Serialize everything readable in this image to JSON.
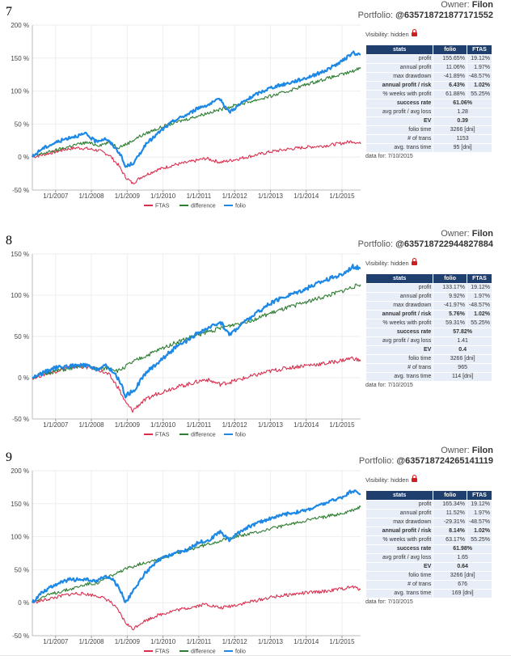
{
  "sections": [
    {
      "number": "7",
      "owner_label": "Owner:",
      "owner": "Filon",
      "portfolio_label": "Portfolio:",
      "portfolio": "@635718721877171552",
      "visibility": "Visibility: hidden",
      "stats_header": [
        "stats",
        "folio",
        "FTAS"
      ],
      "stats": [
        {
          "label": "profit",
          "folio": "155.65%",
          "ftas": "19.12%",
          "bold": false
        },
        {
          "label": "annual profit",
          "folio": "11.06%",
          "ftas": "1.97%",
          "bold": false
        },
        {
          "label": "max drawdown",
          "folio": "-41.89%",
          "ftas": "-48.57%",
          "bold": false
        },
        {
          "label": "annual profit / risk",
          "folio": "6.43%",
          "ftas": "1.02%",
          "bold": true
        },
        {
          "label": "% weeks with profit",
          "folio": "61.88%",
          "ftas": "55.25%",
          "bold": false
        },
        {
          "label": "success rate",
          "folio": "61.06%",
          "ftas": "",
          "bold": true
        },
        {
          "label": "avg profit / avg loss",
          "folio": "1.28",
          "ftas": "",
          "bold": false
        },
        {
          "label": "EV",
          "folio": "0.39",
          "ftas": "",
          "bold": true
        },
        {
          "label": "folio time",
          "folio": "3266 [dni]",
          "ftas": "",
          "bold": false
        },
        {
          "label": "# of trans",
          "folio": "1153",
          "ftas": "",
          "bold": false
        },
        {
          "label": "avg. trans time",
          "folio": "95 [dni]",
          "ftas": "",
          "bold": false
        }
      ],
      "data_for": "data for: 7/10/2015",
      "chart_data": {
        "type": "line",
        "title": "",
        "xlabel": "",
        "ylabel": "",
        "x_tick_labels": [
          "1/1/2007",
          "1/1/2008",
          "1/1/2009",
          "1/1/2010",
          "1/1/2011",
          "1/1/2012",
          "1/1/2013",
          "1/1/2014",
          "1/1/2015"
        ],
        "x_range": [
          2006.35,
          2015.52
        ],
        "y_tick_labels": [
          "200 %",
          "150 %",
          "100 %",
          "50 %",
          "0 %",
          "-50 %"
        ],
        "ylim": [
          -50,
          200
        ],
        "legend": [
          "FTAS",
          "difference",
          "folio"
        ],
        "series": [
          {
            "name": "FTAS",
            "color": "#d9304f",
            "x": [
              2006.35,
              2006.6,
              2007.0,
              2007.3,
              2007.6,
              2007.85,
              2008.2,
              2008.5,
              2008.75,
              2008.95,
              2009.15,
              2009.4,
              2009.8,
              2010.3,
              2010.7,
              2011.2,
              2011.6,
              2011.9,
              2012.5,
              2013.0,
              2013.5,
              2014.0,
              2014.5,
              2015.0,
              2015.3,
              2015.52
            ],
            "y": [
              0,
              3,
              8,
              12,
              14,
              13,
              10,
              3,
              -12,
              -30,
              -40,
              -30,
              -20,
              -12,
              -8,
              -2,
              -8,
              -5,
              2,
              8,
              12,
              15,
              17,
              21,
              24,
              20
            ]
          },
          {
            "name": "difference",
            "color": "#2e7d32",
            "x": [
              2006.35,
              2006.6,
              2007.0,
              2007.5,
              2007.85,
              2008.2,
              2008.5,
              2008.75,
              2009.0,
              2009.3,
              2009.7,
              2010.2,
              2010.7,
              2011.2,
              2011.6,
              2012.0,
              2012.5,
              2013.0,
              2013.5,
              2014.0,
              2014.5,
              2015.0,
              2015.3,
              2015.52
            ],
            "y": [
              0,
              5,
              10,
              18,
              22,
              18,
              22,
              15,
              20,
              30,
              40,
              50,
              58,
              66,
              72,
              78,
              85,
              92,
              100,
              110,
              118,
              125,
              130,
              136
            ]
          },
          {
            "name": "folio",
            "color": "#1e88e5",
            "x": [
              2006.35,
              2006.6,
              2007.0,
              2007.4,
              2007.85,
              2008.1,
              2008.4,
              2008.6,
              2008.8,
              2008.95,
              2009.2,
              2009.5,
              2009.9,
              2010.3,
              2010.7,
              2011.0,
              2011.3,
              2011.6,
              2011.85,
              2012.2,
              2012.6,
              2013.0,
              2013.5,
              2014.0,
              2014.5,
              2015.0,
              2015.3,
              2015.52
            ],
            "y": [
              0,
              12,
              22,
              30,
              35,
              24,
              28,
              18,
              5,
              -15,
              -8,
              18,
              38,
              55,
              65,
              75,
              80,
              88,
              68,
              82,
              95,
              105,
              112,
              120,
              130,
              145,
              158,
              155
            ]
          }
        ]
      }
    },
    {
      "number": "8",
      "owner_label": "Owner:",
      "owner": "Filon",
      "portfolio_label": "Portfolio:",
      "portfolio": "@635718722944827884",
      "visibility": "Visibility: hidden",
      "stats_header": [
        "stats",
        "folio",
        "FTAS"
      ],
      "stats": [
        {
          "label": "profit",
          "folio": "133.17%",
          "ftas": "19.12%",
          "bold": false
        },
        {
          "label": "annual profit",
          "folio": "9.92%",
          "ftas": "1.97%",
          "bold": false
        },
        {
          "label": "max drawdown",
          "folio": "-41.97%",
          "ftas": "-48.57%",
          "bold": false
        },
        {
          "label": "annual profit / risk",
          "folio": "5.76%",
          "ftas": "1.02%",
          "bold": true
        },
        {
          "label": "% weeks with profit",
          "folio": "59.31%",
          "ftas": "55.25%",
          "bold": false
        },
        {
          "label": "success rate",
          "folio": "57.82%",
          "ftas": "",
          "bold": true
        },
        {
          "label": "avg profit / avg loss",
          "folio": "1.41",
          "ftas": "",
          "bold": false
        },
        {
          "label": "EV",
          "folio": "0.4",
          "ftas": "",
          "bold": true
        },
        {
          "label": "folio time",
          "folio": "3266 [dni]",
          "ftas": "",
          "bold": false
        },
        {
          "label": "# of trans",
          "folio": "965",
          "ftas": "",
          "bold": false
        },
        {
          "label": "avg. trans time",
          "folio": "114 [dni]",
          "ftas": "",
          "bold": false
        }
      ],
      "data_for": "data for: 7/10/2015",
      "chart_data": {
        "type": "line",
        "title": "",
        "xlabel": "",
        "ylabel": "",
        "x_tick_labels": [
          "1/1/2007",
          "1/1/2008",
          "1/1/2009",
          "1/1/2010",
          "1/1/2011",
          "1/1/2012",
          "1/1/2013",
          "1/1/2014",
          "1/1/2015"
        ],
        "x_range": [
          2006.35,
          2015.52
        ],
        "y_tick_labels": [
          "150 %",
          "100 %",
          "50 %",
          "0 %",
          "-50 %"
        ],
        "ylim": [
          -50,
          150
        ],
        "legend": [
          "FTAS",
          "difference",
          "folio"
        ],
        "series": [
          {
            "name": "FTAS",
            "color": "#d9304f",
            "x": [
              2006.35,
              2006.6,
              2007.0,
              2007.3,
              2007.6,
              2007.85,
              2008.2,
              2008.5,
              2008.75,
              2008.95,
              2009.15,
              2009.4,
              2009.8,
              2010.3,
              2010.7,
              2011.2,
              2011.6,
              2011.9,
              2012.5,
              2013.0,
              2013.5,
              2014.0,
              2014.5,
              2015.0,
              2015.3,
              2015.52
            ],
            "y": [
              0,
              3,
              8,
              12,
              14,
              13,
              10,
              3,
              -12,
              -30,
              -40,
              -30,
              -20,
              -12,
              -8,
              -2,
              -8,
              -5,
              2,
              8,
              12,
              15,
              17,
              21,
              24,
              20
            ]
          },
          {
            "name": "difference",
            "color": "#2e7d32",
            "x": [
              2006.35,
              2006.6,
              2007.0,
              2007.5,
              2007.85,
              2008.2,
              2008.5,
              2008.75,
              2009.0,
              2009.3,
              2009.7,
              2010.2,
              2010.7,
              2011.2,
              2011.6,
              2012.0,
              2012.5,
              2013.0,
              2013.5,
              2014.0,
              2014.5,
              2015.0,
              2015.3,
              2015.52
            ],
            "y": [
              0,
              4,
              8,
              12,
              15,
              10,
              12,
              8,
              15,
              22,
              30,
              40,
              48,
              55,
              60,
              65,
              70,
              78,
              85,
              92,
              98,
              105,
              110,
              113
            ]
          },
          {
            "name": "folio",
            "color": "#1e88e5",
            "x": [
              2006.35,
              2006.6,
              2007.0,
              2007.4,
              2007.85,
              2008.1,
              2008.4,
              2008.6,
              2008.8,
              2008.95,
              2009.2,
              2009.5,
              2009.9,
              2010.3,
              2010.7,
              2011.0,
              2011.3,
              2011.6,
              2011.85,
              2012.2,
              2012.6,
              2013.0,
              2013.5,
              2014.0,
              2014.5,
              2015.0,
              2015.3,
              2015.52
            ],
            "y": [
              0,
              5,
              12,
              14,
              15,
              10,
              14,
              8,
              -5,
              -22,
              -15,
              5,
              20,
              35,
              45,
              55,
              60,
              68,
              52,
              65,
              78,
              90,
              100,
              108,
              118,
              125,
              135,
              133
            ]
          }
        ]
      }
    },
    {
      "number": "9",
      "owner_label": "Owner:",
      "owner": "Filon",
      "portfolio_label": "Portfolio:",
      "portfolio": "@635718724265141119",
      "visibility": "Visibility: hidden",
      "stats_header": [
        "stats",
        "folio",
        "FTAS"
      ],
      "stats": [
        {
          "label": "profit",
          "folio": "165.34%",
          "ftas": "19.12%",
          "bold": false
        },
        {
          "label": "annual profit",
          "folio": "11.52%",
          "ftas": "1.97%",
          "bold": false
        },
        {
          "label": "max drawdown",
          "folio": "-29.31%",
          "ftas": "-48.57%",
          "bold": false
        },
        {
          "label": "annual profit / risk",
          "folio": "8.14%",
          "ftas": "1.02%",
          "bold": true
        },
        {
          "label": "% weeks with profit",
          "folio": "63.17%",
          "ftas": "55.25%",
          "bold": false
        },
        {
          "label": "success rate",
          "folio": "61.98%",
          "ftas": "",
          "bold": true
        },
        {
          "label": "avg profit / avg loss",
          "folio": "1.65",
          "ftas": "",
          "bold": false
        },
        {
          "label": "EV",
          "folio": "0.64",
          "ftas": "",
          "bold": true
        },
        {
          "label": "folio time",
          "folio": "3266 [dni]",
          "ftas": "",
          "bold": false
        },
        {
          "label": "# of trans",
          "folio": "676",
          "ftas": "",
          "bold": false
        },
        {
          "label": "avg. trans time",
          "folio": "169 [dni]",
          "ftas": "",
          "bold": false
        }
      ],
      "data_for": "data for: 7/10/2015",
      "chart_data": {
        "type": "line",
        "title": "",
        "xlabel": "",
        "ylabel": "",
        "x_tick_labels": [
          "1/1/2007",
          "1/1/2008",
          "1/1/2009",
          "1/1/2010",
          "1/1/2011",
          "1/1/2012",
          "1/1/2013",
          "1/1/2014",
          "1/1/2015"
        ],
        "x_range": [
          2006.35,
          2015.52
        ],
        "y_tick_labels": [
          "200 %",
          "150 %",
          "100 %",
          "50 %",
          "0 %",
          "-50 %"
        ],
        "ylim": [
          -50,
          200
        ],
        "legend": [
          "FTAS",
          "difference",
          "folio"
        ],
        "series": [
          {
            "name": "FTAS",
            "color": "#d9304f",
            "x": [
              2006.35,
              2006.6,
              2007.0,
              2007.3,
              2007.6,
              2007.85,
              2008.2,
              2008.5,
              2008.75,
              2008.95,
              2009.15,
              2009.4,
              2009.8,
              2010.3,
              2010.7,
              2011.2,
              2011.6,
              2011.9,
              2012.5,
              2013.0,
              2013.5,
              2014.0,
              2014.5,
              2015.0,
              2015.3,
              2015.52
            ],
            "y": [
              0,
              3,
              8,
              12,
              14,
              13,
              10,
              3,
              -12,
              -30,
              -40,
              -30,
              -20,
              -12,
              -8,
              -2,
              -8,
              -5,
              2,
              8,
              12,
              15,
              17,
              21,
              24,
              20
            ]
          },
          {
            "name": "difference",
            "color": "#2e7d32",
            "x": [
              2006.35,
              2006.6,
              2007.0,
              2007.5,
              2007.85,
              2008.2,
              2008.5,
              2008.75,
              2009.0,
              2009.3,
              2009.7,
              2010.2,
              2010.7,
              2011.2,
              2011.6,
              2012.0,
              2012.5,
              2013.0,
              2013.5,
              2014.0,
              2014.5,
              2015.0,
              2015.3,
              2015.52
            ],
            "y": [
              0,
              8,
              15,
              22,
              28,
              30,
              40,
              45,
              52,
              58,
              64,
              72,
              80,
              88,
              94,
              100,
              105,
              112,
              118,
              125,
              130,
              135,
              140,
              145
            ]
          },
          {
            "name": "folio",
            "color": "#1e88e5",
            "x": [
              2006.35,
              2006.6,
              2007.0,
              2007.4,
              2007.85,
              2008.1,
              2008.4,
              2008.6,
              2008.8,
              2008.95,
              2009.2,
              2009.5,
              2009.9,
              2010.3,
              2010.7,
              2011.0,
              2011.3,
              2011.6,
              2011.85,
              2012.2,
              2012.6,
              2013.0,
              2013.5,
              2014.0,
              2014.5,
              2015.0,
              2015.3,
              2015.52
            ],
            "y": [
              0,
              15,
              28,
              35,
              35,
              32,
              40,
              35,
              20,
              0,
              20,
              45,
              65,
              75,
              80,
              92,
              95,
              108,
              95,
              110,
              120,
              128,
              135,
              140,
              150,
              160,
              170,
              165
            ]
          }
        ]
      }
    }
  ]
}
